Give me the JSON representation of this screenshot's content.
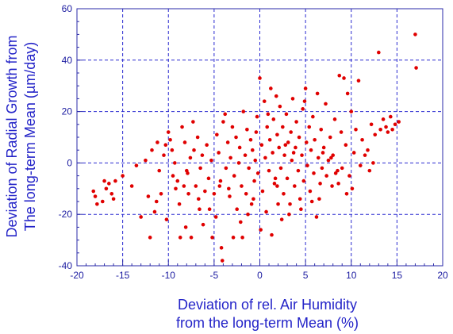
{
  "chart_data": {
    "type": "scatter",
    "title": "",
    "xlabel_lines": [
      "Deviation of rel. Air Humidity",
      "from the long-term Mean (%)"
    ],
    "ylabel_lines": [
      "Deviation of Radial Growth from",
      "The long-term Mean  (µm/day)"
    ],
    "xlim": [
      -20,
      20
    ],
    "ylim": [
      -40,
      60
    ],
    "x_ticks": [
      -20,
      -15,
      -10,
      -5,
      0,
      5,
      10,
      15,
      20
    ],
    "y_ticks": [
      -40,
      -20,
      0,
      20,
      40,
      60
    ],
    "grid": true,
    "colors": {
      "points": "#e00000",
      "axes": "#2a2aa8",
      "grid": "#2a2ad0",
      "labels": "#2424c8"
    },
    "points": [
      [
        -18.2,
        -11
      ],
      [
        -18,
        -13
      ],
      [
        -17.8,
        -16
      ],
      [
        -17.2,
        -15
      ],
      [
        -17,
        -7
      ],
      [
        -16.8,
        -10
      ],
      [
        -16.5,
        -8
      ],
      [
        -16.2,
        -12
      ],
      [
        -16,
        -14
      ],
      [
        -15.8,
        -7
      ],
      [
        -15,
        -5
      ],
      [
        -14,
        -9
      ],
      [
        -13,
        -21
      ],
      [
        -12.5,
        1
      ],
      [
        -12.2,
        -13
      ],
      [
        -12,
        -29
      ],
      [
        -11.8,
        5
      ],
      [
        -11.5,
        -19
      ],
      [
        -11.3,
        -15
      ],
      [
        -11,
        -3
      ],
      [
        -10.8,
        -12
      ],
      [
        -10.5,
        3
      ],
      [
        -10.3,
        7
      ],
      [
        -10.2,
        -22
      ],
      [
        -10,
        12
      ],
      [
        -9.8,
        9
      ],
      [
        -9.6,
        5
      ],
      [
        -9.5,
        -5
      ],
      [
        -9.3,
        0
      ],
      [
        -9,
        -7
      ],
      [
        -8.8,
        -16
      ],
      [
        -8.7,
        -29
      ],
      [
        -8.5,
        14
      ],
      [
        -8.3,
        -9
      ],
      [
        -8.2,
        8
      ],
      [
        -8,
        -3
      ],
      [
        -7.8,
        -12
      ],
      [
        -7.6,
        2
      ],
      [
        -7.5,
        -29
      ],
      [
        -7.3,
        16
      ],
      [
        -7.2,
        5
      ],
      [
        -7,
        -9
      ],
      [
        -6.8,
        10
      ],
      [
        -6.7,
        -14
      ],
      [
        -6.5,
        -2
      ],
      [
        -6.3,
        3
      ],
      [
        -6.2,
        -24
      ],
      [
        -6,
        -11
      ],
      [
        -5.8,
        7
      ],
      [
        -5.6,
        -6
      ],
      [
        -5.5,
        -18
      ],
      [
        -5.3,
        1
      ],
      [
        -5.2,
        -29
      ],
      [
        -5,
        -12
      ],
      [
        -4.8,
        -21
      ],
      [
        -4.7,
        11
      ],
      [
        -4.5,
        4
      ],
      [
        -4.3,
        -7
      ],
      [
        -4.2,
        -33
      ],
      [
        -4.1,
        -38
      ],
      [
        -4,
        16
      ],
      [
        -3.8,
        19
      ],
      [
        -3.7,
        -2
      ],
      [
        -3.5,
        8
      ],
      [
        -3.3,
        -13
      ],
      [
        -3.2,
        2
      ],
      [
        -3,
        14
      ],
      [
        -2.9,
        -29
      ],
      [
        -2.8,
        -5
      ],
      [
        -2.6,
        10
      ],
      [
        -2.5,
        -18
      ],
      [
        -2.3,
        0
      ],
      [
        -2.2,
        6
      ],
      [
        -2,
        -9
      ],
      [
        -1.9,
        -29
      ],
      [
        -1.8,
        20
      ],
      [
        -1.6,
        3
      ],
      [
        -1.5,
        -12
      ],
      [
        -1.4,
        13
      ],
      [
        -1.2,
        -2
      ],
      [
        -1,
        9
      ],
      [
        -0.9,
        -16
      ],
      [
        -0.8,
        5
      ],
      [
        -0.6,
        -7
      ],
      [
        -0.5,
        1
      ],
      [
        -0.3,
        18
      ],
      [
        -0.2,
        -4
      ],
      [
        0,
        33
      ],
      [
        0.1,
        -26
      ],
      [
        0.2,
        7
      ],
      [
        0.3,
        -11
      ],
      [
        0.5,
        24
      ],
      [
        0.6,
        2
      ],
      [
        0.7,
        -19
      ],
      [
        0.8,
        14
      ],
      [
        1,
        -3
      ],
      [
        1.1,
        9
      ],
      [
        1.2,
        29
      ],
      [
        1.3,
        -28
      ],
      [
        1.4,
        4
      ],
      [
        1.5,
        17
      ],
      [
        1.6,
        -8
      ],
      [
        1.8,
        26
      ],
      [
        1.9,
        11
      ],
      [
        2,
        -16
      ],
      [
        2.1,
        6
      ],
      [
        2.2,
        22
      ],
      [
        2.3,
        -2
      ],
      [
        2.5,
        14
      ],
      [
        2.6,
        -12
      ],
      [
        2.7,
        3
      ],
      [
        2.9,
        19
      ],
      [
        3,
        -6
      ],
      [
        3.1,
        8
      ],
      [
        3.2,
        -20
      ],
      [
        3.4,
        12
      ],
      [
        3.5,
        1
      ],
      [
        3.6,
        25
      ],
      [
        3.8,
        -9
      ],
      [
        3.9,
        6
      ],
      [
        4,
        16
      ],
      [
        4.2,
        -3
      ],
      [
        4.3,
        10
      ],
      [
        4.4,
        -14
      ],
      [
        4.6,
        3
      ],
      [
        4.7,
        21
      ],
      [
        4.8,
        -7
      ],
      [
        5,
        29
      ],
      [
        5.1,
        8
      ],
      [
        5.2,
        -1
      ],
      [
        5.4,
        14
      ],
      [
        5.5,
        -11
      ],
      [
        5.6,
        5
      ],
      [
        5.8,
        18
      ],
      [
        5.9,
        -4
      ],
      [
        6,
        9
      ],
      [
        6.2,
        -21
      ],
      [
        6.3,
        27
      ],
      [
        6.4,
        2
      ],
      [
        6.6,
        -8
      ],
      [
        6.7,
        13
      ],
      [
        6.8,
        -2
      ],
      [
        7,
        6
      ],
      [
        7.2,
        23
      ],
      [
        7.3,
        -5
      ],
      [
        7.5,
        1
      ],
      [
        7.7,
        10
      ],
      [
        7.9,
        -9
      ],
      [
        8,
        3
      ],
      [
        8.2,
        17
      ],
      [
        8.5,
        -3
      ],
      [
        8.7,
        34
      ],
      [
        8.9,
        12
      ],
      [
        9,
        -2
      ],
      [
        9.2,
        33
      ],
      [
        9.4,
        7
      ],
      [
        9.6,
        27
      ],
      [
        9.8,
        -5
      ],
      [
        10,
        20
      ],
      [
        10.1,
        -10
      ],
      [
        10.3,
        4
      ],
      [
        10.5,
        13
      ],
      [
        10.8,
        32
      ],
      [
        11,
        -1
      ],
      [
        11.2,
        9
      ],
      [
        11.5,
        3
      ],
      [
        12,
        -3
      ],
      [
        12.2,
        15
      ],
      [
        12.4,
        0
      ],
      [
        12.6,
        11
      ],
      [
        13,
        43
      ],
      [
        13.2,
        13
      ],
      [
        13.5,
        17
      ],
      [
        13.8,
        14
      ],
      [
        14,
        12
      ],
      [
        14.3,
        18
      ],
      [
        14.5,
        13
      ],
      [
        14.8,
        15
      ],
      [
        15.2,
        16
      ],
      [
        17,
        50
      ],
      [
        17.1,
        37
      ],
      [
        -13.5,
        -1
      ],
      [
        -9.2,
        -10
      ],
      [
        -6.6,
        -18
      ],
      [
        -2.1,
        -23
      ],
      [
        -0.7,
        -14
      ],
      [
        2.4,
        -22
      ],
      [
        4.5,
        -18
      ],
      [
        6.5,
        -14
      ],
      [
        8.3,
        -4
      ],
      [
        -11.2,
        8
      ],
      [
        -7.9,
        -4
      ],
      [
        -3.4,
        -10
      ],
      [
        1.7,
        -6
      ],
      [
        3.3,
        -16
      ],
      [
        5.7,
        -15
      ],
      [
        7.8,
        2
      ],
      [
        9.5,
        -12
      ],
      [
        11.8,
        5
      ],
      [
        -0.4,
        12
      ],
      [
        0.9,
        19
      ],
      [
        2.8,
        7
      ],
      [
        4.9,
        24
      ],
      [
        6.9,
        4
      ],
      [
        8.6,
        -8
      ],
      [
        -1.3,
        -20
      ],
      [
        -4.4,
        -9
      ],
      [
        -8.1,
        -25
      ],
      [
        1.9,
        -9
      ],
      [
        3.7,
        4
      ]
    ]
  }
}
